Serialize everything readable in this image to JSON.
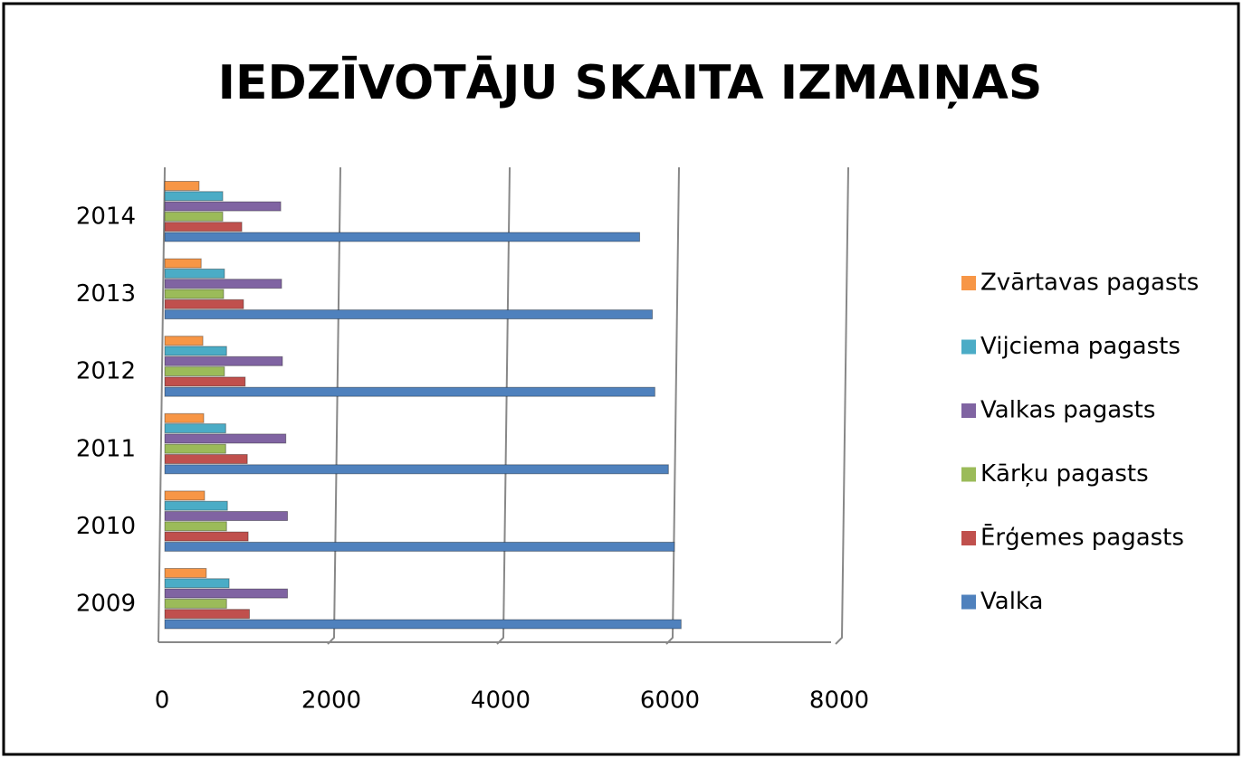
{
  "chart_data": {
    "type": "bar",
    "orientation": "horizontal",
    "title": "IEDZĪVOTĀJU SKAITA IZMAIŅAS",
    "categories": [
      "2009",
      "2010",
      "2011",
      "2012",
      "2013",
      "2014"
    ],
    "series": [
      {
        "name": "Valka",
        "color": "#4f81bd",
        "values": [
          6100,
          6020,
          5950,
          5790,
          5760,
          5610
        ]
      },
      {
        "name": "Ērģemes pagasts",
        "color": "#c0504d",
        "values": [
          1000,
          985,
          975,
          950,
          930,
          910
        ]
      },
      {
        "name": "Kārķu pagasts",
        "color": "#9bbb59",
        "values": [
          730,
          730,
          720,
          705,
          695,
          685
        ]
      },
      {
        "name": "Valkas pagasts",
        "color": "#8064a2",
        "values": [
          1450,
          1450,
          1430,
          1390,
          1380,
          1370
        ]
      },
      {
        "name": "Vijciema pagasts",
        "color": "#4bacc6",
        "values": [
          760,
          740,
          720,
          730,
          705,
          685
        ]
      },
      {
        "name": "Zvārtavas pagasts",
        "color": "#f79646",
        "values": [
          490,
          470,
          460,
          450,
          430,
          405
        ]
      }
    ],
    "xlim": [
      0,
      8000
    ],
    "xticks": [
      0,
      2000,
      4000,
      6000,
      8000
    ],
    "grid": true,
    "legend": "right"
  }
}
